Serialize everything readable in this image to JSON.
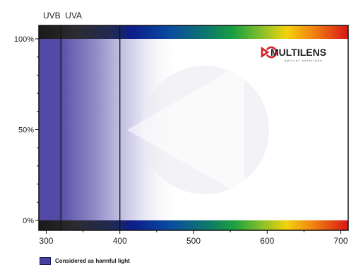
{
  "chart_data": {
    "type": "area",
    "title": "",
    "xlabel": "",
    "ylabel": "",
    "xlim": [
      290,
      710
    ],
    "ylim": [
      0,
      100
    ],
    "x_ticks": [
      300,
      400,
      500,
      600,
      700
    ],
    "x_tick_labels": [
      "300",
      "400",
      "500",
      "600",
      "700"
    ],
    "y_ticks": [
      0,
      50,
      100
    ],
    "y_tick_labels": [
      "0%",
      "50%",
      "100%"
    ],
    "band_labels": [
      {
        "text": "UVB",
        "x_start": 290,
        "x_end": 320
      },
      {
        "text": "UVA",
        "x_start": 320,
        "x_end": 400
      }
    ],
    "boundaries": [
      320,
      400
    ],
    "shaded_region": {
      "x_start": 290,
      "x_fade_start": 320,
      "x_fade_end": 480
    },
    "legend": [
      {
        "label": "Considered as harmful light",
        "color": "#4a40a0"
      }
    ],
    "grid": false
  },
  "brand": {
    "name": "MULTILENS",
    "tagline": "optical solutions",
    "accent": "#d3202a"
  },
  "colors": {
    "harmful": "#4a40a0",
    "frame": "#111111"
  }
}
